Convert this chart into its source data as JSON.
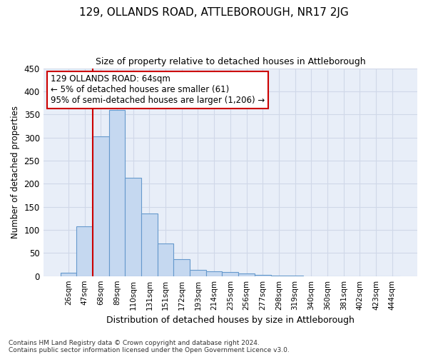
{
  "title": "129, OLLANDS ROAD, ATTLEBOROUGH, NR17 2JG",
  "subtitle": "Size of property relative to detached houses in Attleborough",
  "xlabel": "Distribution of detached houses by size in Attleborough",
  "ylabel": "Number of detached properties",
  "categories": [
    "26sqm",
    "47sqm",
    "68sqm",
    "89sqm",
    "110sqm",
    "131sqm",
    "151sqm",
    "172sqm",
    "193sqm",
    "214sqm",
    "235sqm",
    "256sqm",
    "277sqm",
    "298sqm",
    "319sqm",
    "340sqm",
    "360sqm",
    "381sqm",
    "402sqm",
    "423sqm",
    "444sqm"
  ],
  "bar_values": [
    8,
    108,
    302,
    360,
    213,
    135,
    70,
    37,
    13,
    10,
    9,
    6,
    2,
    1,
    1,
    0,
    0,
    0,
    0,
    0,
    0
  ],
  "bar_color": "#c5d8f0",
  "bar_edge_color": "#6699cc",
  "grid_color": "#d0d8e8",
  "vline_color": "#cc0000",
  "annotation_text": "129 OLLANDS ROAD: 64sqm\n← 5% of detached houses are smaller (61)\n95% of semi-detached houses are larger (1,206) →",
  "annotation_box_color": "#ffffff",
  "annotation_box_edge": "#cc0000",
  "ylim": [
    0,
    450
  ],
  "yticks": [
    0,
    50,
    100,
    150,
    200,
    250,
    300,
    350,
    400,
    450
  ],
  "footer": "Contains HM Land Registry data © Crown copyright and database right 2024.\nContains public sector information licensed under the Open Government Licence v3.0.",
  "bg_color": "#ffffff",
  "plot_bg_color": "#e8eef8"
}
